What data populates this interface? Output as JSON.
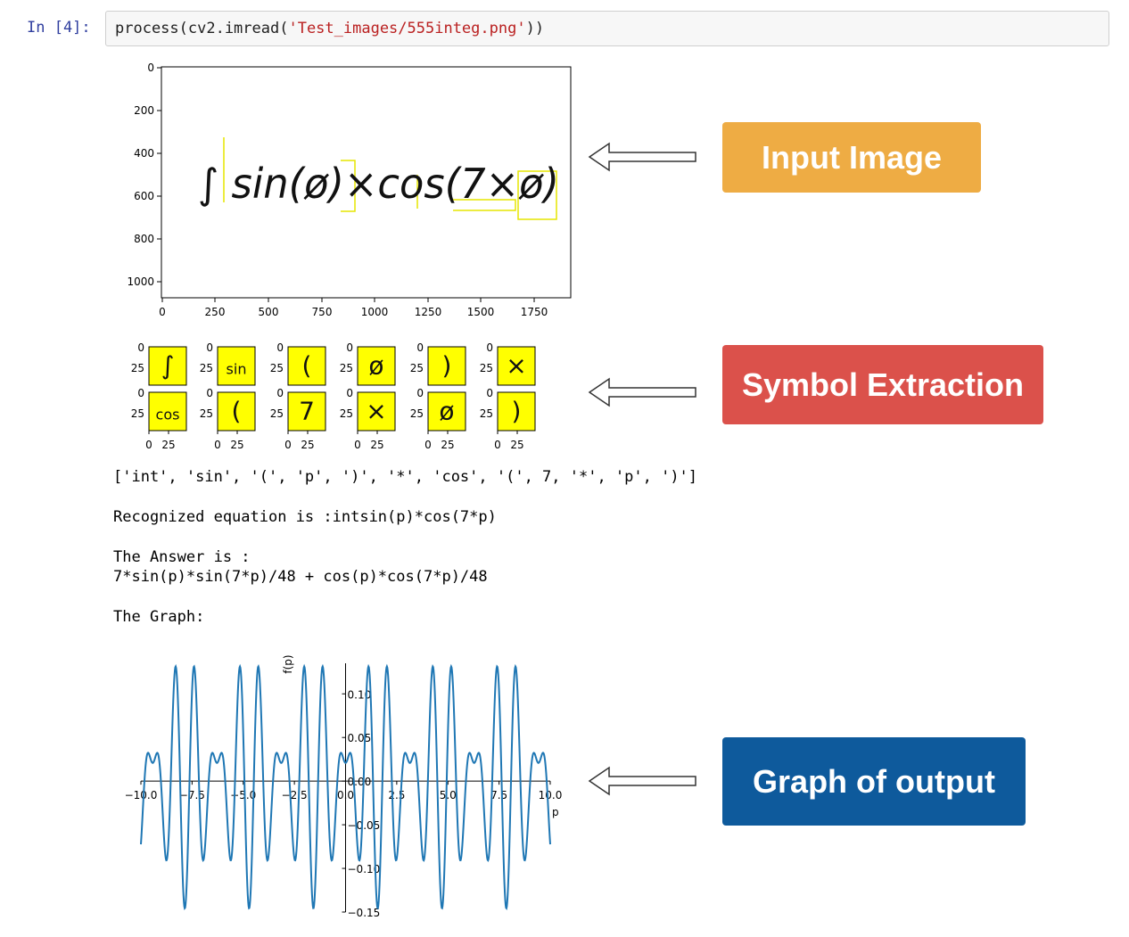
{
  "cell": {
    "prompt": "In [4]:",
    "code_pre": "process(cv2.imread(",
    "code_str": "'Test_images/555integ.png'",
    "code_post": "))"
  },
  "input_plot": {
    "y_ticks": [
      "0",
      "200",
      "400",
      "600",
      "800",
      "1000"
    ],
    "x_ticks": [
      "0",
      "250",
      "500",
      "750",
      "1000",
      "1250",
      "1500",
      "1750"
    ],
    "handwriting": "∫ sin(ø)×cos(7×ø)"
  },
  "symbols": {
    "tick_zero": "0",
    "tick_25": "25",
    "glyphs": [
      "∫",
      "sin",
      "(",
      "ø",
      ")",
      "×",
      "cos",
      "(",
      "7",
      "×",
      "ø",
      ")"
    ]
  },
  "output": {
    "tokens": "['int', 'sin', '(', 'p', ')', '*', 'cos', '(', 7, '*', 'p', ')']",
    "recognized": "Recognized equation is :intsin(p)*cos(7*p)",
    "answer_label": "The Answer is :",
    "answer": "7*sin(p)*sin(7*p)/48 + cos(p)*cos(7*p)/48",
    "graph_label": "The Graph:"
  },
  "chart_data": {
    "type": "line",
    "function": "7*sin(p)*sin(7*p)/48 + cos(p)*cos(7*p)/48",
    "xlabel": "p",
    "ylabel": "f(p)",
    "xlim": [
      -10,
      10
    ],
    "ylim": [
      -0.15,
      0.135
    ],
    "x_ticks": [
      "−10.0",
      "−7.5",
      "−5.0",
      "−2.5",
      "0.0",
      "2.5",
      "5.0",
      "7.5",
      "10.0"
    ],
    "y_ticks": [
      "0.10",
      "0.05",
      "0.00",
      "−0.05",
      "−0.10",
      "−0.15"
    ],
    "color": "#1f77b4"
  },
  "callouts": [
    {
      "text": "Input Image",
      "color": "#eeac44"
    },
    {
      "text": "Symbol Extraction",
      "color": "#db514b"
    },
    {
      "text": "Graph of output",
      "color": "#0e5a9c"
    }
  ]
}
